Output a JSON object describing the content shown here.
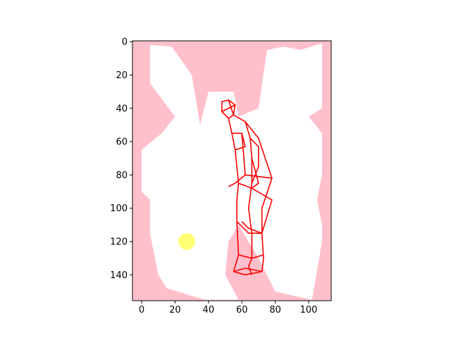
{
  "chart_data": {
    "type": "image-plot",
    "title": "",
    "xlabel": "",
    "ylabel": "",
    "xlim": [
      -5.5,
      113.5
    ],
    "ylim": [
      155.5,
      -0.5
    ],
    "y_inverted": true,
    "grid": false,
    "legend": "none",
    "x_ticks": [
      0,
      20,
      40,
      60,
      80,
      100
    ],
    "y_ticks": [
      0,
      20,
      40,
      60,
      80,
      100,
      120,
      140
    ],
    "x_tick_labels": [
      "0",
      "20",
      "40",
      "60",
      "80",
      "100"
    ],
    "y_tick_labels": [
      "0",
      "20",
      "40",
      "60",
      "80",
      "100",
      "120",
      "140"
    ],
    "colors": {
      "obstacle": "#ffc0cb",
      "free_space": "#ffffff",
      "skeleton": "#ff0000",
      "goal_marker": "#ffff00"
    },
    "background": {
      "extent": [
        -5.5,
        113.5,
        155.5,
        -0.5
      ],
      "color": "#ffc0cb"
    },
    "free_space_polygons": [
      [
        [
          5,
          2
        ],
        [
          18,
          3
        ],
        [
          30,
          20
        ],
        [
          35,
          50
        ],
        [
          40,
          30
        ],
        [
          55,
          30
        ],
        [
          58,
          45
        ],
        [
          70,
          40
        ],
        [
          75,
          5
        ],
        [
          85,
          3
        ],
        [
          95,
          5
        ],
        [
          108,
          1
        ],
        [
          108,
          20
        ],
        [
          108,
          40
        ],
        [
          100,
          45
        ],
        [
          108,
          55
        ],
        [
          108,
          80
        ],
        [
          105,
          95
        ],
        [
          108,
          110
        ],
        [
          108,
          120
        ],
        [
          102,
          155
        ],
        [
          80,
          150
        ],
        [
          70,
          130
        ],
        [
          58,
          110
        ],
        [
          52,
          120
        ],
        [
          50,
          140
        ],
        [
          58,
          155
        ],
        [
          38,
          155
        ],
        [
          15,
          148
        ],
        [
          10,
          140
        ],
        [
          5,
          115
        ],
        [
          5,
          95
        ],
        [
          0,
          90
        ],
        [
          0,
          65
        ],
        [
          12,
          55
        ],
        [
          20,
          45
        ],
        [
          5,
          25
        ]
      ],
      [
        [
          25,
          100
        ],
        [
          30,
          80
        ],
        [
          40,
          70
        ],
        [
          30,
          70
        ],
        [
          15,
          90
        ]
      ],
      [
        [
          75,
          55
        ],
        [
          78,
          45
        ],
        [
          88,
          40
        ],
        [
          90,
          60
        ],
        [
          80,
          70
        ]
      ]
    ],
    "skeleton_segments": [
      [
        [
          48,
          36
        ],
        [
          52,
          35
        ],
        [
          56,
          38
        ],
        [
          55,
          44
        ],
        [
          52,
          46
        ],
        [
          48,
          42
        ],
        [
          48,
          36
        ]
      ],
      [
        [
          52,
          35
        ],
        [
          55,
          44
        ]
      ],
      [
        [
          56,
          38
        ],
        [
          48,
          42
        ]
      ],
      [
        [
          55,
          44
        ],
        [
          62,
          48
        ],
        [
          70,
          58
        ],
        [
          78,
          82
        ],
        [
          72,
          100
        ],
        [
          72,
          115
        ],
        [
          73,
          130
        ],
        [
          72,
          138
        ]
      ],
      [
        [
          52,
          46
        ],
        [
          54,
          55
        ],
        [
          56,
          65
        ],
        [
          57,
          75
        ],
        [
          58,
          85
        ],
        [
          57,
          95
        ],
        [
          57,
          108
        ],
        [
          58,
          128
        ],
        [
          55,
          138
        ]
      ],
      [
        [
          62,
          48
        ],
        [
          65,
          58
        ],
        [
          66,
          70
        ],
        [
          66,
          85
        ],
        [
          64,
          100
        ],
        [
          66,
          115
        ],
        [
          66,
          130
        ],
        [
          64,
          135
        ]
      ],
      [
        [
          54,
          55
        ],
        [
          60,
          55
        ],
        [
          62,
          63
        ],
        [
          56,
          65
        ]
      ],
      [
        [
          60,
          55
        ],
        [
          62,
          80
        ],
        [
          56,
          85
        ],
        [
          52,
          87
        ]
      ],
      [
        [
          65,
          58
        ],
        [
          70,
          63
        ],
        [
          70,
          75
        ],
        [
          66,
          85
        ]
      ],
      [
        [
          66,
          70
        ],
        [
          70,
          85
        ],
        [
          66,
          88
        ]
      ],
      [
        [
          62,
          80
        ],
        [
          78,
          82
        ]
      ],
      [
        [
          58,
          85
        ],
        [
          66,
          88
        ],
        [
          78,
          95
        ],
        [
          72,
          115
        ],
        [
          64,
          112
        ],
        [
          60,
          108
        ]
      ],
      [
        [
          57,
          108
        ],
        [
          64,
          115
        ],
        [
          72,
          115
        ]
      ],
      [
        [
          58,
          128
        ],
        [
          66,
          130
        ],
        [
          73,
          128
        ]
      ],
      [
        [
          55,
          138
        ],
        [
          62,
          140
        ],
        [
          72,
          138
        ],
        [
          62,
          136
        ],
        [
          55,
          138
        ]
      ],
      [
        [
          64,
          135
        ],
        [
          66,
          140
        ]
      ]
    ],
    "goal_marker": {
      "x": 27,
      "y": 120,
      "radius": 5
    }
  }
}
